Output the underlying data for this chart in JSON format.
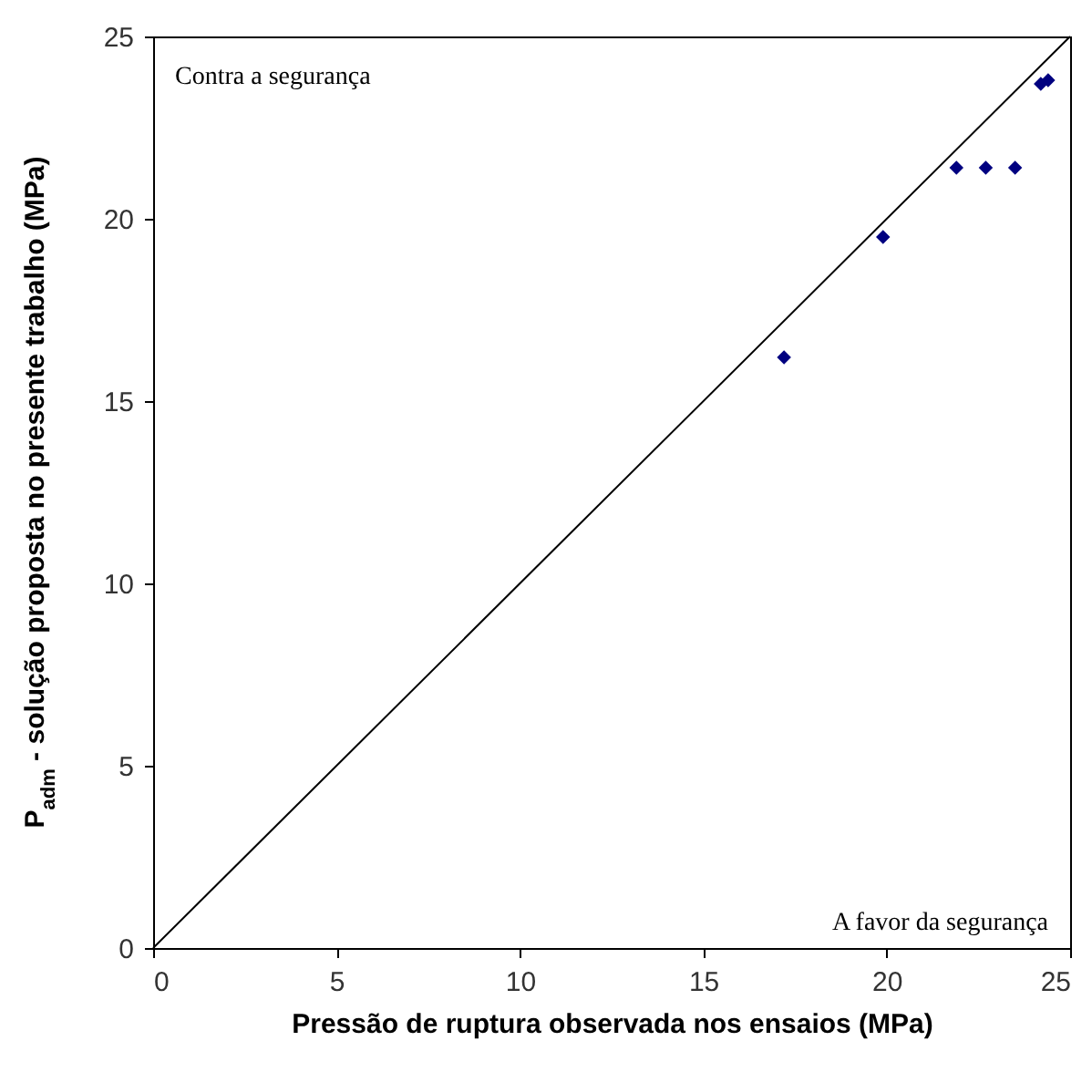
{
  "chart_data": {
    "type": "scatter",
    "xlabel": "Pressão de ruptura observada nos ensaios (MPa)",
    "ylabel": "P$_{adm}$  - solução proposta no presente trabalho (MPa)",
    "xlim": [
      0,
      25
    ],
    "ylim": [
      0,
      25
    ],
    "xticks": [
      0,
      5,
      10,
      15,
      20,
      25
    ],
    "yticks": [
      0,
      5,
      10,
      15,
      20,
      25
    ],
    "grid": false,
    "series": [
      {
        "type": "line",
        "color": "#000000",
        "x": [
          0,
          25
        ],
        "values": [
          0,
          25
        ]
      },
      {
        "color": "#000080",
        "marker": "diamond",
        "x": [
          17.2,
          19.9,
          21.9,
          22.7,
          23.5,
          24.2,
          24.4
        ],
        "values": [
          16.2,
          19.5,
          21.4,
          21.4,
          21.4,
          23.7,
          23.8
        ]
      }
    ],
    "annotations": [
      "Contra a segurança",
      "A favor da segurança"
    ]
  }
}
